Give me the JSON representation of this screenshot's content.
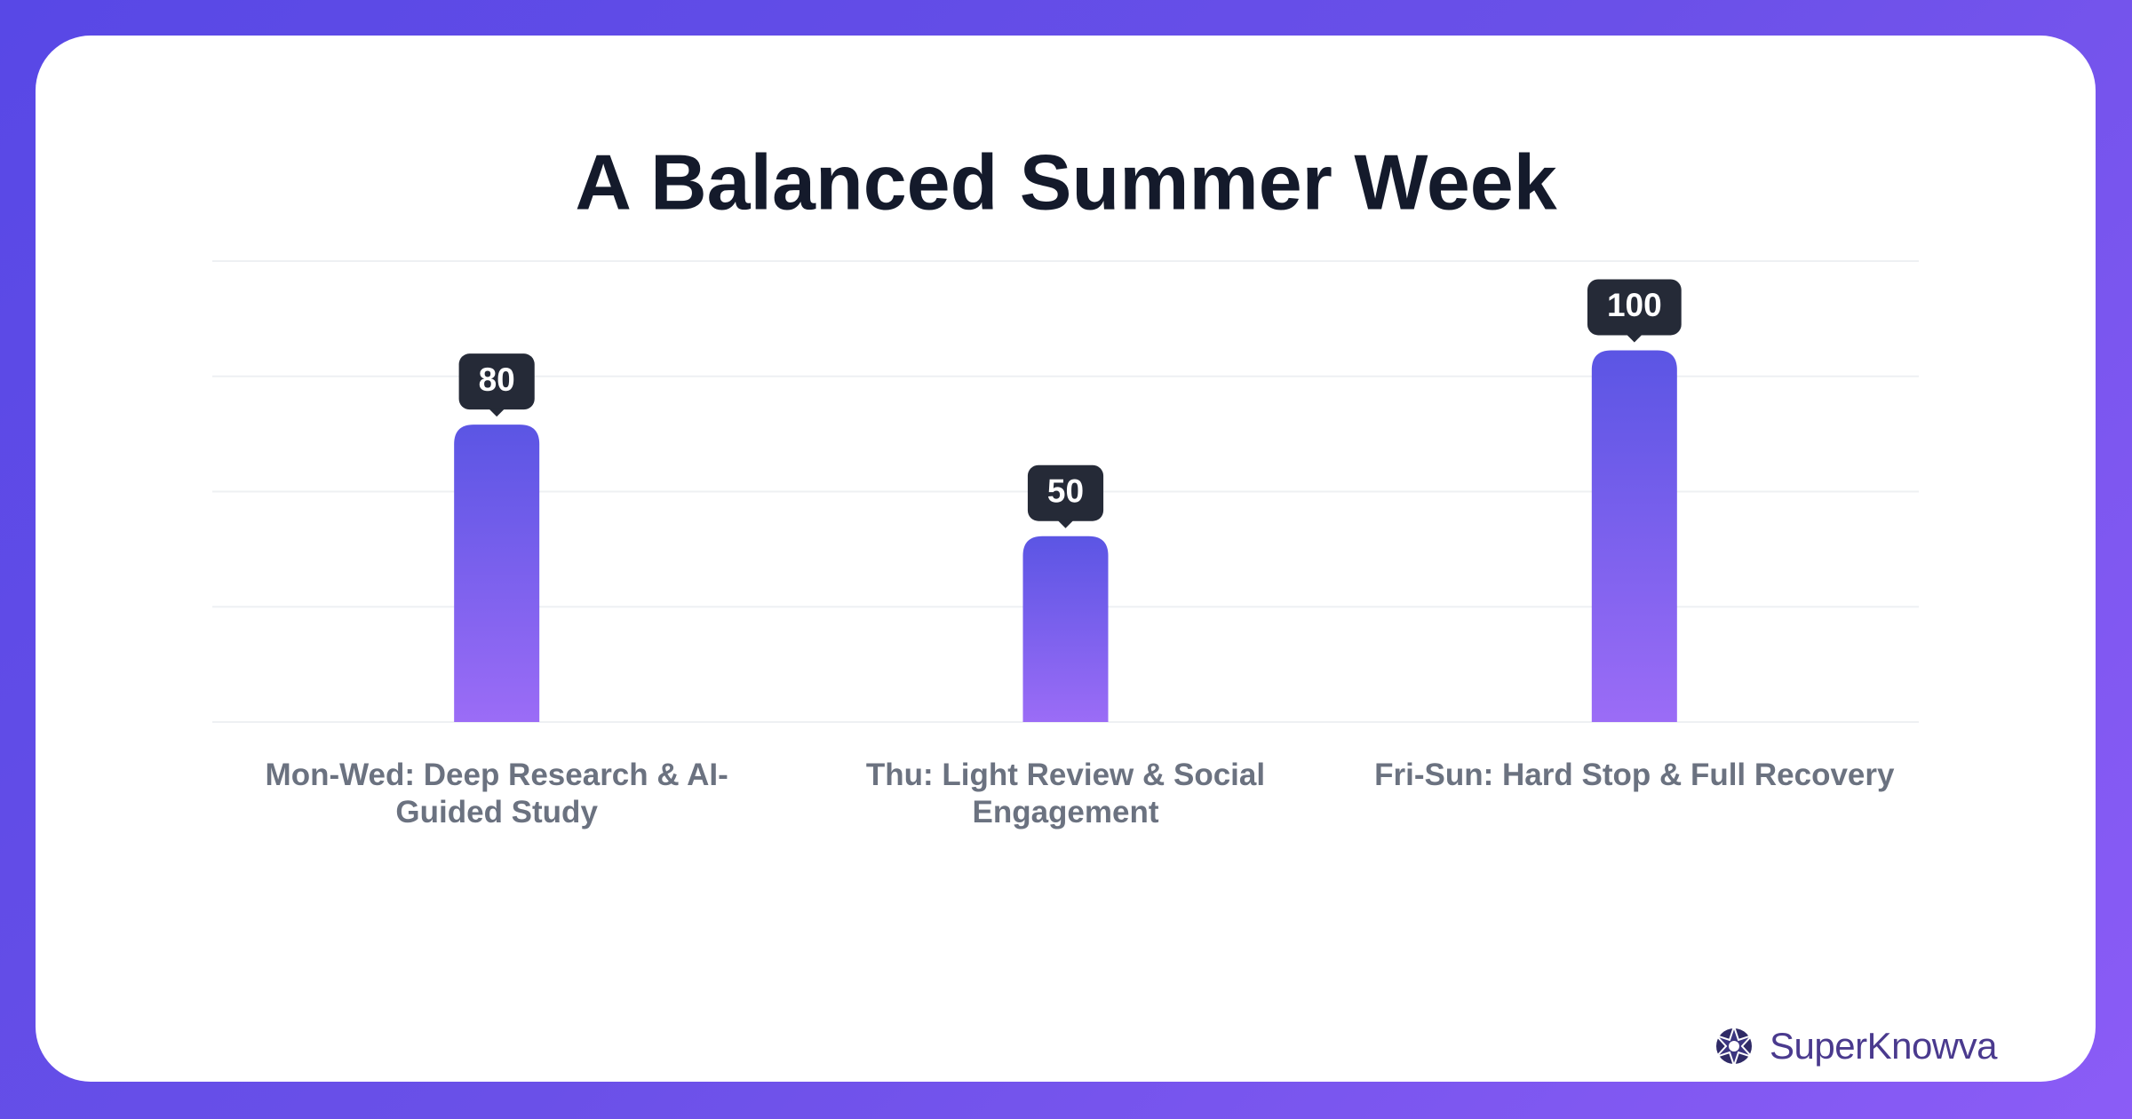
{
  "chart_data": {
    "type": "bar",
    "title": "A Balanced Summer Week",
    "categories": [
      "Mon-Wed: Deep Research & AI-Guided Study",
      "Thu: Light Review & Social Engagement",
      "Fri-Sun: Hard Stop & Full Recovery"
    ],
    "values": [
      80,
      50,
      100
    ],
    "color": [
      "#5b55e4",
      "#9b6cf6"
    ],
    "ylim": [
      0,
      124
    ],
    "yticks": [
      0,
      31,
      62,
      93,
      124
    ],
    "grid": true
  },
  "brand": "SuperKnowva"
}
